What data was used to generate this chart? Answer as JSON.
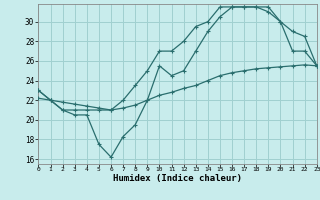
{
  "xlabel": "Humidex (Indice chaleur)",
  "bg_color": "#c8ecec",
  "grid_color": "#a0d0d0",
  "line_color": "#2a6e6e",
  "line1_x": [
    0,
    1,
    2,
    3,
    4,
    5,
    6,
    7,
    8,
    9,
    10,
    11,
    12,
    13,
    14,
    15,
    16,
    17,
    18,
    19,
    20,
    21,
    22,
    23
  ],
  "line1_y": [
    23.0,
    22.0,
    21.0,
    20.5,
    20.5,
    17.5,
    16.2,
    18.3,
    19.5,
    22.0,
    25.5,
    24.5,
    25.0,
    27.0,
    29.0,
    30.5,
    31.5,
    31.5,
    31.5,
    31.0,
    30.0,
    27.0,
    27.0,
    25.5
  ],
  "line2_x": [
    0,
    1,
    2,
    3,
    4,
    5,
    6,
    7,
    8,
    9,
    10,
    11,
    12,
    13,
    14,
    15,
    16,
    17,
    18,
    19,
    20,
    21,
    22,
    23
  ],
  "line2_y": [
    23.0,
    22.0,
    21.0,
    21.0,
    21.0,
    21.0,
    21.0,
    22.0,
    23.5,
    25.0,
    27.0,
    27.0,
    28.0,
    29.5,
    30.0,
    31.5,
    31.5,
    31.5,
    31.5,
    31.5,
    30.0,
    29.0,
    28.5,
    25.5
  ],
  "line3_x": [
    0,
    1,
    2,
    3,
    4,
    5,
    6,
    7,
    8,
    9,
    10,
    11,
    12,
    13,
    14,
    15,
    16,
    17,
    18,
    19,
    20,
    21,
    22,
    23
  ],
  "line3_y": [
    22.2,
    22.0,
    21.8,
    21.6,
    21.4,
    21.2,
    21.0,
    21.2,
    21.5,
    22.0,
    22.5,
    22.8,
    23.2,
    23.5,
    24.0,
    24.5,
    24.8,
    25.0,
    25.2,
    25.3,
    25.4,
    25.5,
    25.6,
    25.5
  ],
  "xticks": [
    0,
    1,
    2,
    3,
    4,
    5,
    6,
    7,
    8,
    9,
    10,
    11,
    12,
    13,
    14,
    15,
    16,
    17,
    18,
    19,
    20,
    21,
    22,
    23
  ],
  "yticks": [
    16,
    18,
    20,
    22,
    24,
    26,
    28,
    30
  ],
  "xlim": [
    0,
    23
  ],
  "ylim": [
    15.5,
    31.8
  ]
}
